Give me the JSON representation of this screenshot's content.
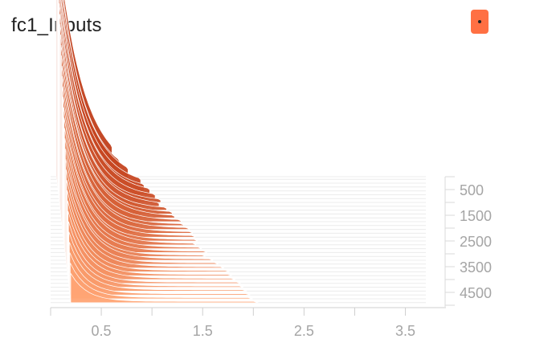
{
  "card": {
    "title": "fc1_Inputs",
    "toggle_color": "#ff7043",
    "toggle_icon": "dot-icon"
  },
  "chart_data": {
    "type": "area",
    "mode": "offset",
    "title": "fc1_Inputs",
    "xlabel": "",
    "ylabel": "",
    "x_ticks": [
      0.5,
      1.5,
      2.5,
      3.5
    ],
    "step_ticks": [
      500,
      1500,
      2500,
      3500,
      4500
    ],
    "xlim": [
      0,
      3.9
    ],
    "step_range": [
      0,
      5000
    ],
    "grid": true,
    "color_oldest": "#ffa474",
    "color_newest": "#c13f1b",
    "series": [
      {
        "step": 0,
        "decay": 0.26,
        "extent": 0.55
      },
      {
        "step": 100,
        "decay": 0.24,
        "extent": 0.62
      },
      {
        "step": 250,
        "decay": 0.25,
        "extent": 0.7
      },
      {
        "step": 400,
        "decay": 0.24,
        "extent": 0.82
      },
      {
        "step": 550,
        "decay": 0.23,
        "extent": 0.85
      },
      {
        "step": 700,
        "decay": 0.24,
        "extent": 0.9
      },
      {
        "step": 850,
        "decay": 0.23,
        "extent": 0.95
      },
      {
        "step": 1000,
        "decay": 0.22,
        "extent": 1.0
      },
      {
        "step": 1150,
        "decay": 0.23,
        "extent": 0.98
      },
      {
        "step": 1300,
        "decay": 0.22,
        "extent": 1.05
      },
      {
        "step": 1450,
        "decay": 0.22,
        "extent": 1.1
      },
      {
        "step": 1600,
        "decay": 0.23,
        "extent": 1.12
      },
      {
        "step": 1750,
        "decay": 0.22,
        "extent": 1.18
      },
      {
        "step": 1900,
        "decay": 0.21,
        "extent": 1.2
      },
      {
        "step": 2050,
        "decay": 0.22,
        "extent": 1.25
      },
      {
        "step": 2200,
        "decay": 0.21,
        "extent": 1.28
      },
      {
        "step": 2350,
        "decay": 0.21,
        "extent": 1.3
      },
      {
        "step": 2500,
        "decay": 0.2,
        "extent": 1.32
      },
      {
        "step": 2650,
        "decay": 0.21,
        "extent": 1.3
      },
      {
        "step": 2800,
        "decay": 0.2,
        "extent": 1.35
      },
      {
        "step": 2950,
        "decay": 0.2,
        "extent": 1.4
      },
      {
        "step": 3100,
        "decay": 0.19,
        "extent": 1.38
      },
      {
        "step": 3250,
        "decay": 0.2,
        "extent": 1.45
      },
      {
        "step": 3400,
        "decay": 0.19,
        "extent": 1.5
      },
      {
        "step": 3550,
        "decay": 0.19,
        "extent": 1.55
      },
      {
        "step": 3700,
        "decay": 0.18,
        "extent": 1.6
      },
      {
        "step": 3850,
        "decay": 0.18,
        "extent": 1.62
      },
      {
        "step": 4000,
        "decay": 0.18,
        "extent": 1.65
      },
      {
        "step": 4150,
        "decay": 0.17,
        "extent": 1.7
      },
      {
        "step": 4300,
        "decay": 0.17,
        "extent": 1.72
      },
      {
        "step": 4450,
        "decay": 0.17,
        "extent": 1.75
      },
      {
        "step": 4600,
        "decay": 0.16,
        "extent": 1.78
      },
      {
        "step": 4750,
        "decay": 0.16,
        "extent": 1.8
      },
      {
        "step": 4900,
        "decay": 0.16,
        "extent": 1.85
      }
    ]
  }
}
